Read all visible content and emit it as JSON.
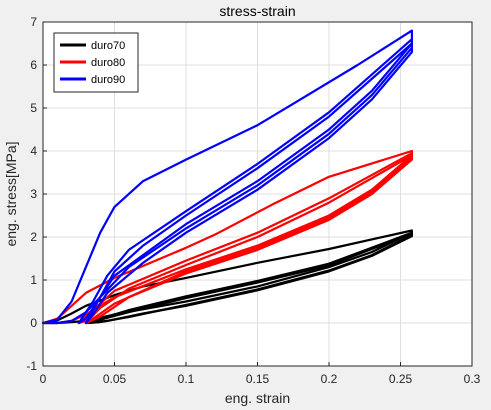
{
  "chart_data": {
    "type": "line",
    "title": "stress-strain",
    "xlabel": "eng. strain",
    "ylabel": "eng. stress[MPa]",
    "xlim": [
      0,
      0.3
    ],
    "ylim": [
      -1,
      7
    ],
    "x_ticks": [
      0,
      0.05,
      0.1,
      0.15,
      0.2,
      0.25,
      0.3
    ],
    "x_tick_labels": [
      "0",
      "0.05",
      "0.1",
      "0.15",
      "0.2",
      "0.25",
      "0.3"
    ],
    "y_ticks": [
      -1,
      0,
      1,
      2,
      3,
      4,
      5,
      6,
      7
    ],
    "y_tick_labels": [
      "-1",
      "0",
      "1",
      "2",
      "3",
      "4",
      "5",
      "6",
      "7"
    ],
    "grid": true,
    "legend_position": "top-left",
    "series": [
      {
        "name": "duro70",
        "color": "#000000",
        "loops": [
          [
            [
              0.0,
              0.0
            ],
            [
              0.01,
              0.0
            ],
            [
              0.02,
              0.02
            ],
            [
              0.03,
              0.05
            ],
            [
              0.05,
              0.2
            ],
            [
              0.1,
              0.5
            ],
            [
              0.15,
              0.85
            ],
            [
              0.2,
              1.3
            ],
            [
              0.23,
              1.65
            ],
            [
              0.258,
              2.1
            ],
            [
              0.258,
              2.15
            ],
            [
              0.2,
              1.72
            ],
            [
              0.15,
              1.4
            ],
            [
              0.1,
              1.05
            ],
            [
              0.07,
              0.85
            ],
            [
              0.05,
              0.65
            ],
            [
              0.03,
              0.4
            ],
            [
              0.02,
              0.22
            ],
            [
              0.01,
              0.06
            ],
            [
              0.0,
              0.0
            ]
          ],
          [
            [
              0.03,
              0.0
            ],
            [
              0.04,
              0.02
            ],
            [
              0.06,
              0.14
            ],
            [
              0.1,
              0.42
            ],
            [
              0.15,
              0.78
            ],
            [
              0.2,
              1.22
            ],
            [
              0.23,
              1.58
            ],
            [
              0.258,
              2.05
            ],
            [
              0.258,
              2.1
            ],
            [
              0.2,
              1.38
            ],
            [
              0.15,
              0.98
            ],
            [
              0.1,
              0.62
            ],
            [
              0.06,
              0.3
            ],
            [
              0.04,
              0.1
            ],
            [
              0.03,
              0.0
            ]
          ],
          [
            [
              0.032,
              0.0
            ],
            [
              0.045,
              0.05
            ],
            [
              0.07,
              0.22
            ],
            [
              0.1,
              0.4
            ],
            [
              0.15,
              0.76
            ],
            [
              0.2,
              1.2
            ],
            [
              0.23,
              1.56
            ],
            [
              0.258,
              2.02
            ],
            [
              0.258,
              2.08
            ],
            [
              0.2,
              1.34
            ],
            [
              0.15,
              0.94
            ],
            [
              0.1,
              0.58
            ],
            [
              0.07,
              0.34
            ],
            [
              0.045,
              0.12
            ],
            [
              0.032,
              0.0
            ]
          ]
        ]
      },
      {
        "name": "duro80",
        "color": "#ff0000",
        "loops": [
          [
            [
              0.0,
              0.0
            ],
            [
              0.01,
              0.0
            ],
            [
              0.02,
              0.05
            ],
            [
              0.03,
              0.2
            ],
            [
              0.05,
              0.6
            ],
            [
              0.1,
              1.25
            ],
            [
              0.15,
              1.8
            ],
            [
              0.2,
              2.5
            ],
            [
              0.23,
              3.1
            ],
            [
              0.258,
              3.9
            ],
            [
              0.258,
              4.0
            ],
            [
              0.2,
              3.4
            ],
            [
              0.16,
              2.75
            ],
            [
              0.12,
              2.05
            ],
            [
              0.1,
              1.75
            ],
            [
              0.05,
              1.05
            ],
            [
              0.03,
              0.7
            ],
            [
              0.02,
              0.4
            ],
            [
              0.01,
              0.1
            ],
            [
              0.0,
              0.0
            ]
          ],
          [
            [
              0.025,
              0.0
            ],
            [
              0.035,
              0.1
            ],
            [
              0.05,
              0.45
            ],
            [
              0.1,
              1.2
            ],
            [
              0.15,
              1.75
            ],
            [
              0.2,
              2.45
            ],
            [
              0.23,
              3.05
            ],
            [
              0.258,
              3.85
            ],
            [
              0.258,
              3.95
            ],
            [
              0.2,
              2.9
            ],
            [
              0.15,
              2.1
            ],
            [
              0.1,
              1.45
            ],
            [
              0.05,
              0.75
            ],
            [
              0.035,
              0.3
            ],
            [
              0.025,
              0.0
            ]
          ],
          [
            [
              0.03,
              0.0
            ],
            [
              0.04,
              0.15
            ],
            [
              0.06,
              0.6
            ],
            [
              0.1,
              1.15
            ],
            [
              0.15,
              1.7
            ],
            [
              0.2,
              2.4
            ],
            [
              0.23,
              3.0
            ],
            [
              0.258,
              3.8
            ],
            [
              0.258,
              3.9
            ],
            [
              0.2,
              2.8
            ],
            [
              0.15,
              2.0
            ],
            [
              0.1,
              1.35
            ],
            [
              0.06,
              0.8
            ],
            [
              0.04,
              0.35
            ],
            [
              0.03,
              0.0
            ]
          ]
        ]
      },
      {
        "name": "duro90",
        "color": "#0000ff",
        "loops": [
          [
            [
              0.0,
              0.0
            ],
            [
              0.01,
              0.0
            ],
            [
              0.02,
              0.05
            ],
            [
              0.03,
              0.25
            ],
            [
              0.04,
              0.6
            ],
            [
              0.05,
              1.1
            ],
            [
              0.1,
              2.3
            ],
            [
              0.15,
              3.3
            ],
            [
              0.2,
              4.5
            ],
            [
              0.23,
              5.4
            ],
            [
              0.258,
              6.5
            ],
            [
              0.258,
              6.8
            ],
            [
              0.22,
              6.0
            ],
            [
              0.18,
              5.2
            ],
            [
              0.15,
              4.6
            ],
            [
              0.1,
              3.8
            ],
            [
              0.07,
              3.3
            ],
            [
              0.05,
              2.7
            ],
            [
              0.04,
              2.1
            ],
            [
              0.03,
              1.3
            ],
            [
              0.02,
              0.5
            ],
            [
              0.01,
              0.08
            ],
            [
              0.0,
              0.0
            ]
          ],
          [
            [
              0.025,
              0.0
            ],
            [
              0.03,
              0.1
            ],
            [
              0.04,
              0.6
            ],
            [
              0.06,
              1.3
            ],
            [
              0.1,
              2.2
            ],
            [
              0.15,
              3.2
            ],
            [
              0.2,
              4.4
            ],
            [
              0.23,
              5.3
            ],
            [
              0.258,
              6.4
            ],
            [
              0.258,
              6.6
            ],
            [
              0.2,
              4.9
            ],
            [
              0.15,
              3.7
            ],
            [
              0.1,
              2.6
            ],
            [
              0.06,
              1.7
            ],
            [
              0.045,
              1.1
            ],
            [
              0.035,
              0.5
            ],
            [
              0.025,
              0.0
            ]
          ],
          [
            [
              0.03,
              0.0
            ],
            [
              0.035,
              0.2
            ],
            [
              0.045,
              0.7
            ],
            [
              0.07,
              1.4
            ],
            [
              0.1,
              2.1
            ],
            [
              0.15,
              3.1
            ],
            [
              0.2,
              4.3
            ],
            [
              0.23,
              5.2
            ],
            [
              0.258,
              6.3
            ],
            [
              0.258,
              6.5
            ],
            [
              0.2,
              4.8
            ],
            [
              0.15,
              3.6
            ],
            [
              0.1,
              2.5
            ],
            [
              0.07,
              1.8
            ],
            [
              0.05,
              1.2
            ],
            [
              0.04,
              0.6
            ],
            [
              0.03,
              0.0
            ]
          ]
        ]
      }
    ]
  }
}
